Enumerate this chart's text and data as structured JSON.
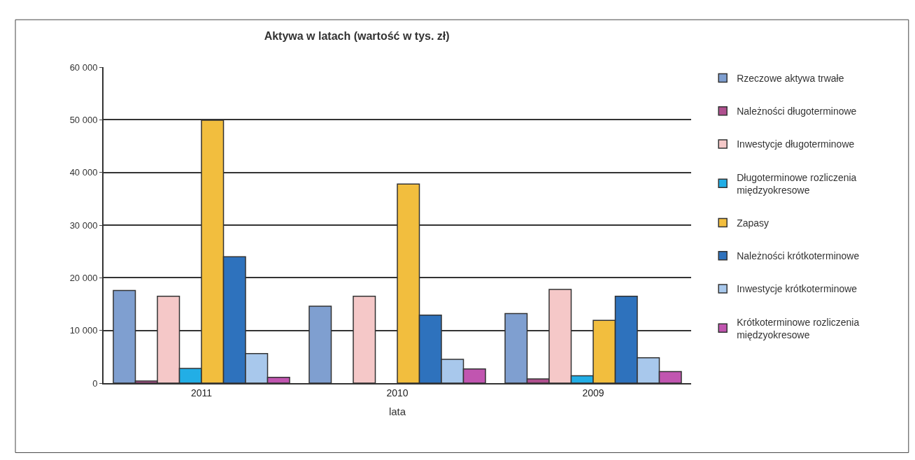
{
  "chart_data": {
    "type": "bar",
    "title": "Aktywa w latach (wartość w tys. zł)",
    "xlabel": "lata",
    "categories": [
      "2011",
      "2010",
      "2009"
    ],
    "series": [
      {
        "name": "Rzeczowe aktywa trwałe",
        "color": "#7f9fd0",
        "values": [
          17600,
          14600,
          13200
        ]
      },
      {
        "name": "Należności długoterminowe",
        "color": "#b0508f",
        "values": [
          400,
          null,
          800
        ]
      },
      {
        "name": "Inwestycje długoterminowe",
        "color": "#f5c8c8",
        "values": [
          16500,
          16500,
          17800
        ]
      },
      {
        "name": "Długoterminowe rozliczenia międzyokresowe",
        "color": "#22aee6",
        "values": [
          2800,
          null,
          1400
        ]
      },
      {
        "name": "Zapasy",
        "color": "#f2be3e",
        "values": [
          49900,
          37800,
          11900
        ]
      },
      {
        "name": "Należności krótkoterminowe",
        "color": "#2e72bd",
        "values": [
          24000,
          12900,
          16500
        ]
      },
      {
        "name": "Inwestycje krótkoterminowe",
        "color": "#a8c8ec",
        "values": [
          5600,
          4500,
          4800
        ]
      },
      {
        "name": "Krótkoterminowe rozliczenia międzyokresowe",
        "color": "#c155b0",
        "values": [
          1100,
          2700,
          2200
        ]
      }
    ],
    "ylim": [
      0,
      60000
    ],
    "yticks": [
      {
        "value": 0,
        "label": "0"
      },
      {
        "value": 10000,
        "label": "10 000"
      },
      {
        "value": 20000,
        "label": "20 000"
      },
      {
        "value": 30000,
        "label": "30 000"
      },
      {
        "value": 40000,
        "label": "40 000"
      },
      {
        "value": 50000,
        "label": "50 000"
      },
      {
        "value": 60000,
        "label": "60 000"
      }
    ],
    "grid": "y",
    "legend": "right"
  }
}
